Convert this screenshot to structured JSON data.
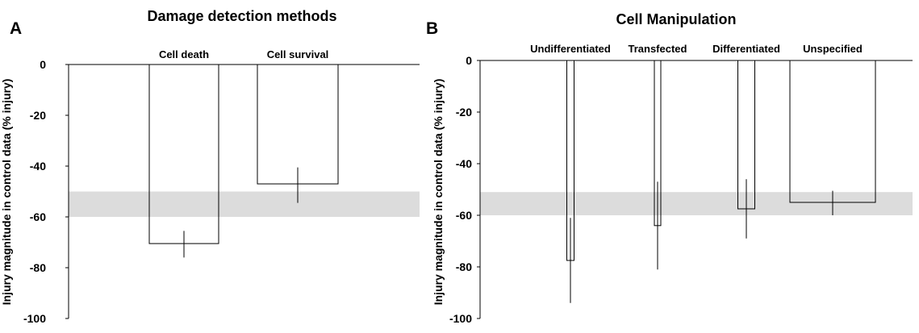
{
  "chart_data": [
    {
      "panel_label": "A",
      "type": "bar",
      "title": "Damage detection methods",
      "ylabel": "Injury magnitude in control data (% injury)",
      "xlabel": "",
      "categories": [
        "Cell death",
        "Cell survival"
      ],
      "values": [
        -70.5,
        -47
      ],
      "error_low": [
        -76,
        -54.5
      ],
      "error_high": [
        -65.5,
        -40.5
      ],
      "shaded_band": [
        -60,
        -50
      ],
      "ylim": [
        -100,
        0
      ],
      "yticks": [
        "0",
        "-20",
        "-40",
        "-60",
        "-80",
        "-100"
      ],
      "grid": false
    },
    {
      "panel_label": "B",
      "type": "bar",
      "title": "Cell Manipulation",
      "ylabel": "Injury magnitude in control data  (% injury)",
      "xlabel": "",
      "categories": [
        "Undifferentiated",
        "Transfected",
        "Differentiated",
        "Unspecified"
      ],
      "values": [
        -77.5,
        -64,
        -57.5,
        -55
      ],
      "error_low": [
        -94,
        -81,
        -69,
        -60
      ],
      "error_high": [
        -61,
        -47,
        -46,
        -50.5
      ],
      "shaded_band": [
        -60,
        -51
      ],
      "ylim": [
        -100,
        0
      ],
      "yticks": [
        "0",
        "-20",
        "-40",
        "-60",
        "-80",
        "-100"
      ],
      "grid": false
    }
  ]
}
